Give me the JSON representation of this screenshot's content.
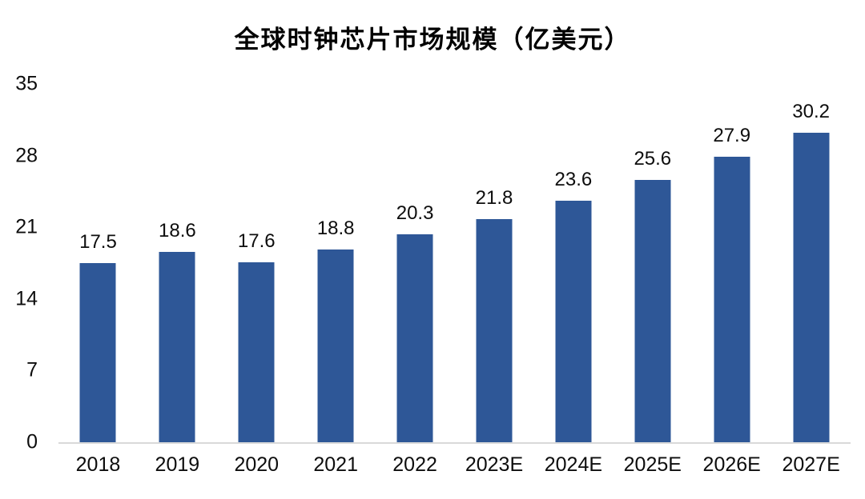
{
  "colors": {
    "bar": "#2e5797",
    "axis_line": "#d9d9d9",
    "text": "#0d0d0d",
    "background": "#ffffff"
  },
  "chart_data": {
    "type": "bar",
    "title": "全球时钟芯片市场规模（亿美元）",
    "categories": [
      "2018",
      "2019",
      "2020",
      "2021",
      "2022",
      "2023E",
      "2024E",
      "2025E",
      "2026E",
      "2027E"
    ],
    "values": [
      17.5,
      18.6,
      17.6,
      18.8,
      20.3,
      21.8,
      23.6,
      25.6,
      27.9,
      30.2
    ],
    "data_labels": [
      "17.5",
      "18.6",
      "17.6",
      "18.8",
      "20.3",
      "21.8",
      "23.6",
      "25.6",
      "27.9",
      "30.2"
    ],
    "xlabel": "",
    "ylabel": "",
    "ylim": [
      0,
      35
    ],
    "yticks": [
      0,
      7,
      14,
      21,
      28,
      35
    ],
    "grid": false,
    "legend": false,
    "data_labels_visible": true
  }
}
